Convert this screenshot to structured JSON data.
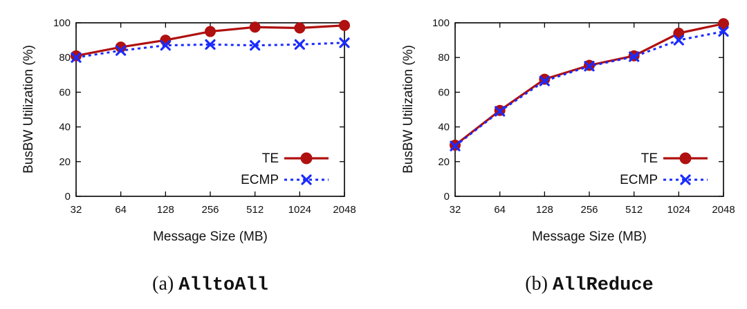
{
  "colors": {
    "te": "#b01010",
    "ecmp": "#1a2bff",
    "axis": "#000000"
  },
  "chart_data": [
    {
      "type": "line",
      "caption_prefix": "(a) ",
      "caption_name": "AlltoAll",
      "xlabel": "Message Size (MB)",
      "ylabel": "BusBW Utilization (%)",
      "categories": [
        "32",
        "64",
        "128",
        "256",
        "512",
        "1024",
        "2048"
      ],
      "ylim": [
        0,
        100
      ],
      "yticks": [
        "0",
        "20",
        "40",
        "60",
        "80",
        "100"
      ],
      "legend_position": "bottom-right",
      "series": [
        {
          "name": "TE",
          "marker": "circle",
          "values": [
            81,
            86,
            90,
            95,
            97.5,
            97,
            98.5
          ]
        },
        {
          "name": "ECMP",
          "marker": "x",
          "values": [
            80,
            84,
            87,
            87.5,
            87,
            87.5,
            88.5
          ]
        }
      ]
    },
    {
      "type": "line",
      "caption_prefix": "(b) ",
      "caption_name": "AllReduce",
      "xlabel": "Message Size (MB)",
      "ylabel": "BusBW Utilization (%)",
      "categories": [
        "32",
        "64",
        "128",
        "256",
        "512",
        "1024",
        "2048"
      ],
      "ylim": [
        0,
        100
      ],
      "yticks": [
        "0",
        "20",
        "40",
        "60",
        "80",
        "100"
      ],
      "legend_position": "bottom-right",
      "series": [
        {
          "name": "TE",
          "marker": "circle",
          "values": [
            29.5,
            49.5,
            67.5,
            75.5,
            81,
            94,
            99.5
          ]
        },
        {
          "name": "ECMP",
          "marker": "x",
          "values": [
            29,
            49,
            66.5,
            75,
            80.5,
            90,
            95
          ]
        }
      ]
    }
  ]
}
